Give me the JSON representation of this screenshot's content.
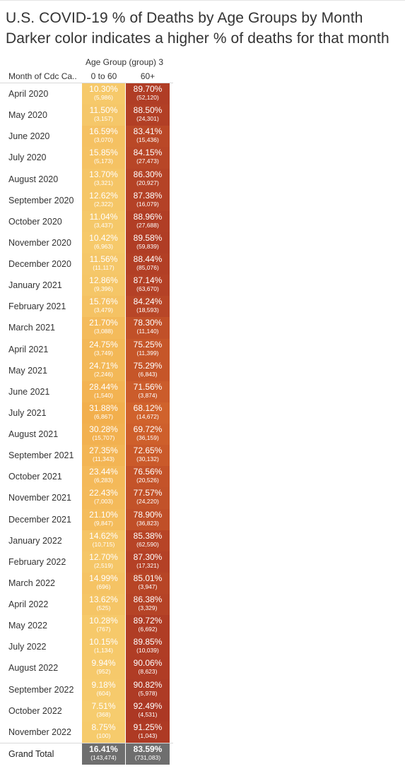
{
  "title": {
    "line1": "U.S. COVID-19 % of Deaths by Age Groups by Month",
    "line2": "Darker color indicates a higher % of deaths for that month"
  },
  "colors": {
    "light_cell": "#f4c05c",
    "dark_cell": "#b5402a",
    "total_cell": "#6e6e6e",
    "text": "#333333"
  },
  "chart_data": {
    "type": "heatmap",
    "row_header": "Month of Cdc Ca..",
    "column_group_header": "Age Group (group) 3",
    "columns": [
      "0 to 60",
      "60+"
    ],
    "rows": [
      {
        "month": "April 2020",
        "pct": [
          "10.30%",
          "89.70%"
        ],
        "count": [
          "(5,986)",
          "(52,120)"
        ],
        "v": [
          10.3,
          89.7
        ]
      },
      {
        "month": "May 2020",
        "pct": [
          "11.50%",
          "88.50%"
        ],
        "count": [
          "(3,157)",
          "(24,301)"
        ],
        "v": [
          11.5,
          88.5
        ]
      },
      {
        "month": "June 2020",
        "pct": [
          "16.59%",
          "83.41%"
        ],
        "count": [
          "(3,070)",
          "(15,436)"
        ],
        "v": [
          16.59,
          83.41
        ]
      },
      {
        "month": "July 2020",
        "pct": [
          "15.85%",
          "84.15%"
        ],
        "count": [
          "(5,173)",
          "(27,473)"
        ],
        "v": [
          15.85,
          84.15
        ]
      },
      {
        "month": "August 2020",
        "pct": [
          "13.70%",
          "86.30%"
        ],
        "count": [
          "(3,321)",
          "(20,927)"
        ],
        "v": [
          13.7,
          86.3
        ]
      },
      {
        "month": "September 2020",
        "pct": [
          "12.62%",
          "87.38%"
        ],
        "count": [
          "(2,322)",
          "(16,079)"
        ],
        "v": [
          12.62,
          87.38
        ]
      },
      {
        "month": "October 2020",
        "pct": [
          "11.04%",
          "88.96%"
        ],
        "count": [
          "(3,437)",
          "(27,688)"
        ],
        "v": [
          11.04,
          88.96
        ]
      },
      {
        "month": "November 2020",
        "pct": [
          "10.42%",
          "89.58%"
        ],
        "count": [
          "(6,963)",
          "(59,839)"
        ],
        "v": [
          10.42,
          89.58
        ]
      },
      {
        "month": "December 2020",
        "pct": [
          "11.56%",
          "88.44%"
        ],
        "count": [
          "(11,117)",
          "(85,076)"
        ],
        "v": [
          11.56,
          88.44
        ]
      },
      {
        "month": "January 2021",
        "pct": [
          "12.86%",
          "87.14%"
        ],
        "count": [
          "(9,396)",
          "(63,670)"
        ],
        "v": [
          12.86,
          87.14
        ]
      },
      {
        "month": "February 2021",
        "pct": [
          "15.76%",
          "84.24%"
        ],
        "count": [
          "(3,479)",
          "(18,593)"
        ],
        "v": [
          15.76,
          84.24
        ]
      },
      {
        "month": "March 2021",
        "pct": [
          "21.70%",
          "78.30%"
        ],
        "count": [
          "(3,088)",
          "(11,140)"
        ],
        "v": [
          21.7,
          78.3
        ]
      },
      {
        "month": "April 2021",
        "pct": [
          "24.75%",
          "75.25%"
        ],
        "count": [
          "(3,749)",
          "(11,399)"
        ],
        "v": [
          24.75,
          75.25
        ]
      },
      {
        "month": "May 2021",
        "pct": [
          "24.71%",
          "75.29%"
        ],
        "count": [
          "(2,246)",
          "(6,843)"
        ],
        "v": [
          24.71,
          75.29
        ]
      },
      {
        "month": "June 2021",
        "pct": [
          "28.44%",
          "71.56%"
        ],
        "count": [
          "(1,540)",
          "(3,874)"
        ],
        "v": [
          28.44,
          71.56
        ]
      },
      {
        "month": "July 2021",
        "pct": [
          "31.88%",
          "68.12%"
        ],
        "count": [
          "(6,867)",
          "(14,672)"
        ],
        "v": [
          31.88,
          68.12
        ]
      },
      {
        "month": "August 2021",
        "pct": [
          "30.28%",
          "69.72%"
        ],
        "count": [
          "(15,707)",
          "(36,159)"
        ],
        "v": [
          30.28,
          69.72
        ]
      },
      {
        "month": "September 2021",
        "pct": [
          "27.35%",
          "72.65%"
        ],
        "count": [
          "(11,343)",
          "(30,132)"
        ],
        "v": [
          27.35,
          72.65
        ]
      },
      {
        "month": "October 2021",
        "pct": [
          "23.44%",
          "76.56%"
        ],
        "count": [
          "(6,283)",
          "(20,526)"
        ],
        "v": [
          23.44,
          76.56
        ]
      },
      {
        "month": "November 2021",
        "pct": [
          "22.43%",
          "77.57%"
        ],
        "count": [
          "(7,003)",
          "(24,220)"
        ],
        "v": [
          22.43,
          77.57
        ]
      },
      {
        "month": "December 2021",
        "pct": [
          "21.10%",
          "78.90%"
        ],
        "count": [
          "(9,847)",
          "(36,823)"
        ],
        "v": [
          21.1,
          78.9
        ]
      },
      {
        "month": "January 2022",
        "pct": [
          "14.62%",
          "85.38%"
        ],
        "count": [
          "(10,715)",
          "(62,590)"
        ],
        "v": [
          14.62,
          85.38
        ]
      },
      {
        "month": "February 2022",
        "pct": [
          "12.70%",
          "87.30%"
        ],
        "count": [
          "(2,519)",
          "(17,321)"
        ],
        "v": [
          12.7,
          87.3
        ]
      },
      {
        "month": "March 2022",
        "pct": [
          "14.99%",
          "85.01%"
        ],
        "count": [
          "(696)",
          "(3,947)"
        ],
        "v": [
          14.99,
          85.01
        ]
      },
      {
        "month": "April 2022",
        "pct": [
          "13.62%",
          "86.38%"
        ],
        "count": [
          "(525)",
          "(3,329)"
        ],
        "v": [
          13.62,
          86.38
        ]
      },
      {
        "month": "May 2022",
        "pct": [
          "10.28%",
          "89.72%"
        ],
        "count": [
          "(767)",
          "(6,692)"
        ],
        "v": [
          10.28,
          89.72
        ]
      },
      {
        "month": "July 2022",
        "pct": [
          "10.15%",
          "89.85%"
        ],
        "count": [
          "(1,134)",
          "(10,039)"
        ],
        "v": [
          10.15,
          89.85
        ]
      },
      {
        "month": "August 2022",
        "pct": [
          "9.94%",
          "90.06%"
        ],
        "count": [
          "(952)",
          "(8,623)"
        ],
        "v": [
          9.94,
          90.06
        ]
      },
      {
        "month": "September 2022",
        "pct": [
          "9.18%",
          "90.82%"
        ],
        "count": [
          "(604)",
          "(5,978)"
        ],
        "v": [
          9.18,
          90.82
        ]
      },
      {
        "month": "October 2022",
        "pct": [
          "7.51%",
          "92.49%"
        ],
        "count": [
          "(368)",
          "(4,531)"
        ],
        "v": [
          7.51,
          92.49
        ]
      },
      {
        "month": "November 2022",
        "pct": [
          "8.75%",
          "91.25%"
        ],
        "count": [
          "(100)",
          "(1,043)"
        ],
        "v": [
          8.75,
          91.25
        ]
      }
    ],
    "grand_total": {
      "label": "Grand Total",
      "pct": [
        "16.41%",
        "83.59%"
      ],
      "count": [
        "(143,474)",
        "(731,083)"
      ]
    }
  }
}
